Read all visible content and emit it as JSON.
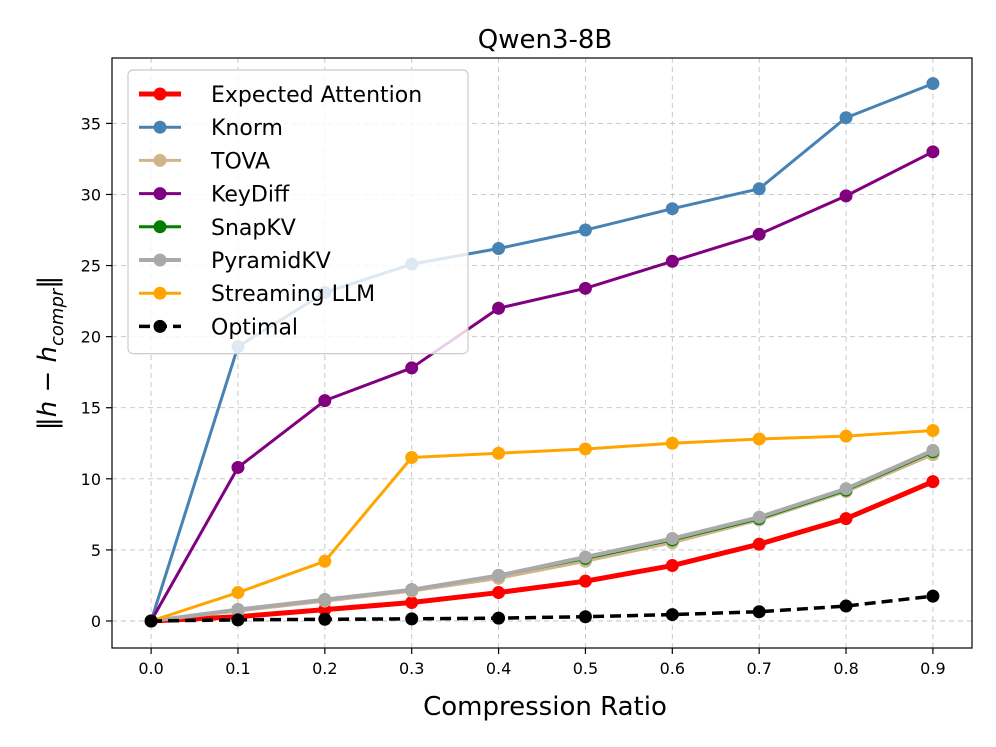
{
  "chart_data": {
    "type": "line",
    "title": "Qwen3-8B",
    "xlabel": "Compression Ratio",
    "ylabel": "‖h − h_compr‖",
    "ylabel_main": "‖h − h",
    "ylabel_sub": "compr",
    "ylabel_end": "‖",
    "x": [
      0.0,
      0.1,
      0.2,
      0.3,
      0.4,
      0.5,
      0.6,
      0.7,
      0.8,
      0.9
    ],
    "x_tick_labels": [
      "0.0",
      "0.1",
      "0.2",
      "0.3",
      "0.4",
      "0.5",
      "0.6",
      "0.7",
      "0.8",
      "0.9"
    ],
    "y_ticks": [
      0,
      5,
      10,
      15,
      20,
      25,
      30,
      35
    ],
    "xlim": [
      -0.045,
      0.945
    ],
    "ylim": [
      -1.9,
      39.6
    ],
    "grid": true,
    "legend_position": "top-left",
    "series": [
      {
        "name": "Expected Attention",
        "color": "#ff0000",
        "width": 5,
        "dashed": false,
        "values": [
          0.0,
          0.3,
          0.8,
          1.3,
          2.0,
          2.8,
          3.9,
          5.4,
          7.2,
          9.8
        ]
      },
      {
        "name": "Knorm",
        "color": "#4682b4",
        "width": 3,
        "dashed": false,
        "values": [
          0.0,
          19.3,
          23.1,
          25.1,
          26.2,
          27.5,
          29.0,
          30.4,
          35.4,
          37.8
        ]
      },
      {
        "name": "TOVA",
        "color": "#d2b48c",
        "width": 3,
        "dashed": false,
        "values": [
          0.0,
          0.7,
          1.4,
          2.1,
          3.0,
          4.2,
          5.5,
          7.1,
          9.1,
          11.7
        ]
      },
      {
        "name": "KeyDiff",
        "color": "#800080",
        "width": 3,
        "dashed": false,
        "values": [
          0.0,
          10.8,
          15.5,
          17.8,
          22.0,
          23.4,
          25.3,
          27.2,
          29.9,
          33.0
        ]
      },
      {
        "name": "SnapKV",
        "color": "#008000",
        "width": 3,
        "dashed": false,
        "values": [
          0.0,
          0.8,
          1.5,
          2.2,
          3.2,
          4.4,
          5.7,
          7.2,
          9.2,
          11.9
        ]
      },
      {
        "name": "PyramidKV",
        "color": "#a9a9a9",
        "width": 4,
        "dashed": false,
        "values": [
          0.0,
          0.8,
          1.5,
          2.2,
          3.2,
          4.5,
          5.8,
          7.3,
          9.3,
          12.0
        ]
      },
      {
        "name": "Streaming LLM",
        "color": "#ffa500",
        "width": 3,
        "dashed": false,
        "values": [
          0.0,
          2.0,
          4.2,
          11.5,
          11.8,
          12.1,
          12.5,
          12.8,
          13.0,
          13.4
        ]
      },
      {
        "name": "Optimal",
        "color": "#000000",
        "width": 3.5,
        "dashed": true,
        "values": [
          0.0,
          0.08,
          0.12,
          0.15,
          0.2,
          0.3,
          0.45,
          0.65,
          1.05,
          1.75
        ]
      }
    ]
  }
}
